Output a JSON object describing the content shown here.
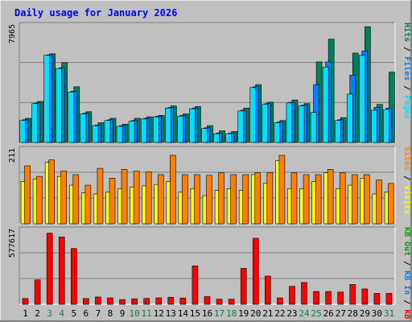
{
  "title": "Daily usage for January 2026",
  "colors": {
    "background": "#C0C0C0",
    "frame_light": "#E6E6E6",
    "frame_dark": "#808080",
    "plot_bg": "#C0C0C0",
    "title": "#0000FF",
    "weekday_label": "#000000",
    "weekend_label": "#1A7A4A",
    "hits": "#00805C",
    "files": "#0080FF",
    "pages": "#00E0FF",
    "visits": "#FFFF00",
    "sites": "#FF8000",
    "kb_in": "#0080FF",
    "kb_out": "#00A000",
    "kb_f": "#FF0000",
    "separator_light": "#FFFFFF",
    "separator_dark": "#808080"
  },
  "days": [
    "1",
    "2",
    "3",
    "4",
    "5",
    "6",
    "7",
    "8",
    "9",
    "10",
    "11",
    "12",
    "13",
    "14",
    "15",
    "16",
    "17",
    "18",
    "19",
    "20",
    "21",
    "22",
    "23",
    "24",
    "25",
    "26",
    "27",
    "28",
    "29",
    "30",
    "31"
  ],
  "weekend_days": [
    3,
    4,
    10,
    11,
    17,
    18,
    24,
    25,
    31
  ],
  "chart_data": [
    {
      "type": "bar",
      "panel": "top",
      "ymax_label": "7965",
      "ylim": [
        0,
        7965
      ],
      "categories": [
        "1",
        "2",
        "3",
        "4",
        "5",
        "6",
        "7",
        "8",
        "9",
        "10",
        "11",
        "12",
        "13",
        "14",
        "15",
        "16",
        "17",
        "18",
        "19",
        "20",
        "21",
        "22",
        "23",
        "24",
        "25",
        "26",
        "27",
        "28",
        "29",
        "30",
        "31"
      ],
      "series": [
        {
          "name": "Hits",
          "values": [
            1650,
            2800,
            6050,
            5450,
            3800,
            2100,
            1350,
            1650,
            1250,
            1650,
            1750,
            1850,
            2500,
            1950,
            2450,
            1150,
            800,
            750,
            2350,
            3950,
            2750,
            1500,
            2900,
            2650,
            5500,
            7050,
            1700,
            6100,
            7900,
            2600,
            4800
          ]
        },
        {
          "name": "Files",
          "values": [
            1550,
            2700,
            5980,
            5100,
            3500,
            2000,
            1200,
            1550,
            1150,
            1500,
            1650,
            1800,
            2400,
            1850,
            2350,
            1000,
            650,
            650,
            2200,
            3800,
            2650,
            1400,
            2750,
            2550,
            3950,
            5500,
            1550,
            4600,
            6250,
            2400,
            2350
          ]
        },
        {
          "name": "Pages",
          "values": [
            1500,
            2650,
            5950,
            5050,
            3450,
            1950,
            1150,
            1500,
            1100,
            1450,
            1600,
            1750,
            2350,
            1800,
            2300,
            950,
            600,
            600,
            2150,
            3750,
            2600,
            1350,
            2700,
            2500,
            2050,
            5150,
            1500,
            3300,
            5950,
            2200,
            2250
          ]
        }
      ],
      "legend": [
        "Pages",
        "/",
        "Files",
        "/",
        "Hits"
      ]
    },
    {
      "type": "bar",
      "panel": "middle",
      "ymax_label": "211",
      "ylim": [
        0,
        211
      ],
      "categories": [
        "1",
        "2",
        "3",
        "4",
        "5",
        "6",
        "7",
        "8",
        "9",
        "10",
        "11",
        "12",
        "13",
        "14",
        "15",
        "16",
        "17",
        "18",
        "19",
        "20",
        "21",
        "22",
        "23",
        "24",
        "25",
        "26",
        "27",
        "28",
        "29",
        "30",
        "31"
      ],
      "series": [
        {
          "name": "Visits",
          "values": [
            120,
            128,
            175,
            135,
            110,
            88,
            85,
            90,
            100,
            105,
            108,
            112,
            120,
            90,
            100,
            80,
            95,
            100,
            95,
            140,
            115,
            180,
            100,
            100,
            120,
            145,
            100,
            110,
            130,
            85,
            90
          ]
        },
        {
          "name": "Sites",
          "values": [
            165,
            135,
            182,
            150,
            140,
            110,
            158,
            130,
            155,
            150,
            148,
            140,
            195,
            140,
            140,
            138,
            145,
            140,
            140,
            145,
            145,
            195,
            145,
            140,
            140,
            155,
            145,
            140,
            140,
            125,
            115
          ]
        }
      ],
      "legend": [
        "Visits",
        "/",
        "Sites"
      ]
    },
    {
      "type": "bar",
      "panel": "bottom",
      "ymax_label": "577617",
      "ylim": [
        0,
        577617
      ],
      "categories": [
        "1",
        "2",
        "3",
        "4",
        "5",
        "6",
        "7",
        "8",
        "9",
        "10",
        "11",
        "12",
        "13",
        "14",
        "15",
        "16",
        "17",
        "18",
        "19",
        "20",
        "21",
        "22",
        "23",
        "24",
        "25",
        "26",
        "27",
        "28",
        "29",
        "30",
        "31"
      ],
      "series": [
        {
          "name": "KB F",
          "values": [
            45000,
            190000,
            555000,
            525000,
            435000,
            45000,
            57000,
            50000,
            37000,
            43000,
            46000,
            50000,
            55000,
            49000,
            300000,
            60000,
            40000,
            40000,
            280000,
            515000,
            220000,
            50000,
            140000,
            170000,
            100000,
            100000,
            95000,
            155000,
            120000,
            85000,
            85000
          ]
        }
      ],
      "legend": [
        "KB F",
        "/",
        "KB In",
        "/",
        "KB Out"
      ]
    }
  ]
}
